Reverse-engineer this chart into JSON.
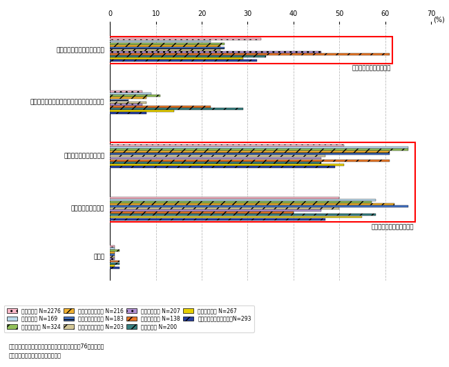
{
  "cat_labels": [
    "シルバー市場の開拓と活性化",
    "バリアフリー・ユニバーサルデザインの推進",
    "高齢者の活躍の場の創出",
    "柔軟な働き方の実現",
    "その他"
  ],
  "series_names": [
    "全業種合計 N=2276",
    "農林水産業 N=169",
    "鉱業・建設業 N=324",
    "基礎素材型製造業 N=216",
    "加工組立型製造業 N=183",
    "生活関連型製造業 N=203",
    "卸売・小売業 N=207",
    "飲食・宿泊業 N=138",
    "医療・福祉 N=200",
    "運輸・通信業 N=267",
    "その他（サービス業等）N=293"
  ],
  "colors": [
    "#f9b8c8",
    "#b8d8ea",
    "#92c05a",
    "#f0b030",
    "#4472c4",
    "#d4c898",
    "#b090d0",
    "#e87828",
    "#388080",
    "#e8d000",
    "#2840a0"
  ],
  "hatches": [
    "..",
    "",
    "//",
    "//",
    "--",
    "//",
    "..",
    "//",
    "//",
    "==",
    "//"
  ],
  "values": [
    [
      33,
      7,
      51,
      50,
      1
    ],
    [
      22,
      9,
      65,
      58,
      1
    ],
    [
      25,
      11,
      65,
      57,
      2
    ],
    [
      24,
      8,
      61,
      62,
      1
    ],
    [
      25,
      4,
      61,
      65,
      1
    ],
    [
      24,
      8,
      47,
      50,
      1
    ],
    [
      46,
      7,
      46,
      46,
      1
    ],
    [
      61,
      22,
      61,
      40,
      2
    ],
    [
      34,
      29,
      46,
      58,
      2
    ],
    [
      29,
      14,
      51,
      55,
      1
    ],
    [
      32,
      8,
      49,
      47,
      2
    ]
  ],
  "xlim": [
    0,
    70
  ],
  "xticks": [
    0,
    10,
    20,
    30,
    40,
    50,
    60,
    70
  ],
  "box1_label": "高齢者を市場として認識",
  "box2_label": "高齢者を担い手として認識",
  "note1": "（注）　全業種合計には、業種分類できなかっご76社を含む。",
  "note2": "資料）国土交通省事業者アンケート"
}
